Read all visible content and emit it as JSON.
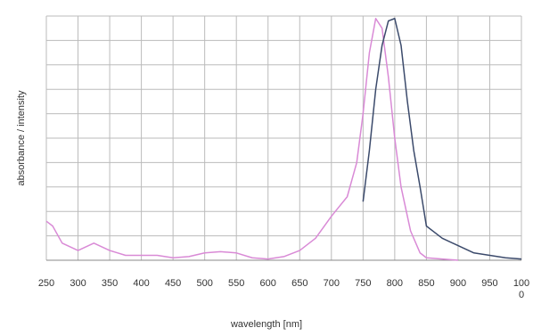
{
  "chart_data": {
    "type": "line",
    "x_label": "wavelength [nm]",
    "y_label": "absorbance / intensity",
    "xlim": [
      250,
      1000
    ],
    "xticks": [
      250,
      300,
      350,
      400,
      450,
      500,
      550,
      600,
      650,
      700,
      750,
      800,
      850,
      900,
      950,
      1000
    ],
    "ylim": [
      0,
      100
    ],
    "yticks": [
      0,
      10,
      20,
      30,
      40,
      50,
      60,
      70,
      80,
      90,
      100
    ],
    "grid": true,
    "series": [
      {
        "color": "#d98ad6",
        "x": [
          250,
          260,
          275,
          300,
          325,
          350,
          375,
          400,
          425,
          450,
          475,
          500,
          525,
          550,
          575,
          600,
          625,
          650,
          675,
          700,
          725,
          740,
          750,
          760,
          770,
          780,
          790,
          800,
          810,
          825,
          840,
          850,
          875,
          900
        ],
        "values": [
          16,
          14,
          7,
          4,
          7,
          4,
          2,
          2,
          2,
          1,
          1.5,
          3,
          3.5,
          3,
          1,
          0.5,
          1.5,
          4,
          9,
          18,
          26,
          40,
          60,
          85,
          99,
          95,
          75,
          50,
          30,
          12,
          3,
          1,
          0.5,
          0
        ]
      },
      {
        "color": "#3b4a6b",
        "x": [
          750,
          760,
          770,
          780,
          790,
          800,
          810,
          820,
          830,
          840,
          850,
          875,
          900,
          925,
          950,
          975,
          1000
        ],
        "values": [
          24,
          45,
          70,
          88,
          98,
          99,
          88,
          65,
          45,
          30,
          14,
          9,
          6,
          3,
          2,
          1,
          0.5
        ]
      }
    ]
  }
}
